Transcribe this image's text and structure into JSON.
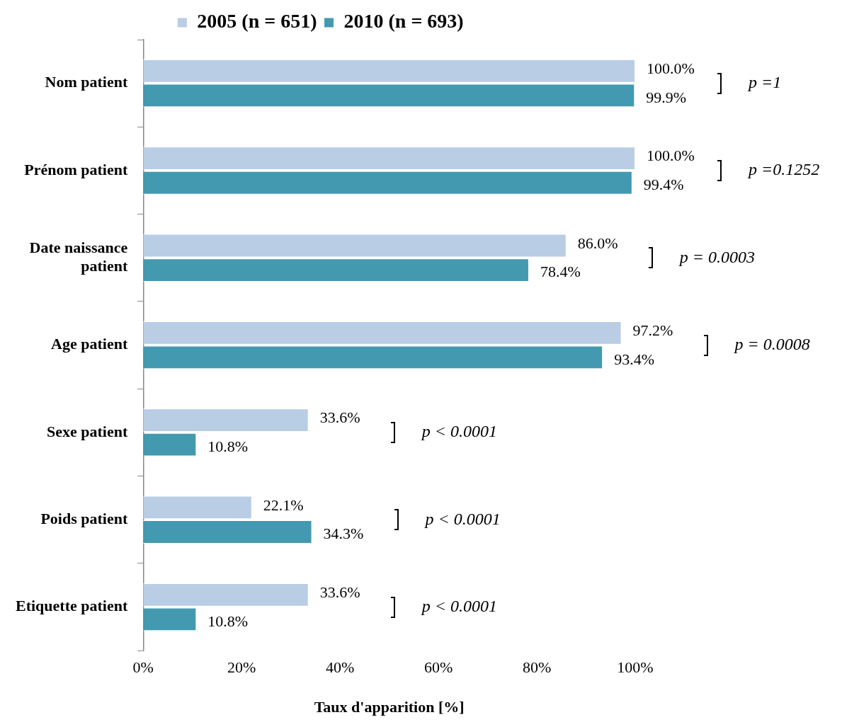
{
  "chart_data": {
    "type": "bar",
    "orientation": "horizontal",
    "xlabel": "Taux d'apparition [%]",
    "categories": [
      "Nom patient",
      "Prénom patient",
      "Date naissance patient",
      "Age patient",
      "Sexe patient",
      "Poids patient",
      "Etiquette patient"
    ],
    "series": [
      {
        "name": "2005 (n = 651)",
        "color": "#b9cde5",
        "values": [
          100.0,
          100.0,
          86.0,
          97.2,
          33.6,
          22.1,
          33.6
        ],
        "value_labels": [
          "100.0%",
          "100.0%",
          "86.0%",
          "97.2%",
          "33.6%",
          "22.1%",
          "33.6%"
        ]
      },
      {
        "name": "2010 (n = 693)",
        "color": "#4399b0",
        "values": [
          99.9,
          99.4,
          78.4,
          93.4,
          10.8,
          34.3,
          10.8
        ],
        "value_labels": [
          "99.9%",
          "99.4%",
          "78.4%",
          "93.4%",
          "10.8%",
          "34.3%",
          "10.8%"
        ]
      }
    ],
    "xlim": [
      0,
      100
    ],
    "xticks": [
      {
        "value": 0,
        "label": "0%"
      },
      {
        "value": 20,
        "label": "20%"
      },
      {
        "value": 40,
        "label": "40%"
      },
      {
        "value": 60,
        "label": "60%"
      },
      {
        "value": 80,
        "label": "80%"
      },
      {
        "value": 100,
        "label": "100%"
      }
    ],
    "annotations": [
      "p =1",
      "p =0.1252",
      "p = 0.0003",
      "p = 0.0008",
      "p < 0.0001",
      "p < 0.0001",
      "p < 0.0001"
    ],
    "grid": false,
    "legend": "top"
  }
}
